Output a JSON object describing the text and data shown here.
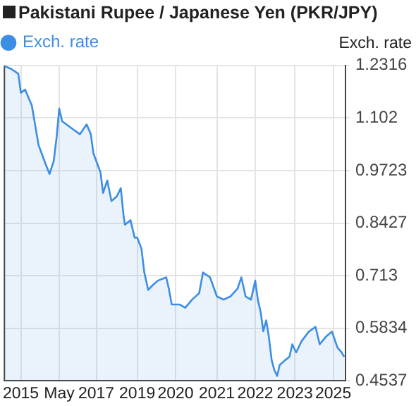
{
  "chart_data": {
    "type": "area",
    "title": "Pakistani Rupee / Japanese Yen (PKR/JPY)",
    "ylabel": "Exch. rate",
    "legend": "top left",
    "grid": true,
    "marker": "none",
    "x": [
      2014.44,
      2014.65,
      2014.87,
      2014.95,
      2015.08,
      2015.29,
      2015.5,
      2015.72,
      2015.84,
      2015.97,
      2016.06,
      2016.14,
      2016.23,
      2016.57,
      2016.78,
      2016.99,
      2017.12,
      2017.2,
      2017.42,
      2017.5,
      2017.63,
      2017.76,
      2017.93,
      2018.05,
      2018.14,
      2018.18,
      2018.35,
      2018.48,
      2018.56,
      2018.69,
      2018.78,
      2018.9,
      2019.03,
      2019.2,
      2019.46,
      2019.54,
      2019.63,
      2019.88,
      2020.05,
      2020.26,
      2020.48,
      2020.6,
      2020.82,
      2021.03,
      2021.24,
      2021.45,
      2021.67,
      2021.79,
      2021.92,
      2022.09,
      2022.22,
      2022.3,
      2022.39,
      2022.47,
      2022.56,
      2022.64,
      2022.73,
      2022.81,
      2022.9,
      2022.98,
      2023.15,
      2023.28,
      2023.37,
      2023.49,
      2023.66,
      2023.88,
      2024.09,
      2024.22,
      2024.43,
      2024.6,
      2024.77,
      2024.9,
      2024.98
    ],
    "series": [
      {
        "name": "Exch. rate",
        "color": "#3c8ee4",
        "values": [
          1.23,
          1.223,
          1.211,
          1.164,
          1.172,
          1.133,
          1.035,
          0.988,
          0.964,
          0.996,
          1.055,
          1.125,
          1.094,
          1.074,
          1.062,
          1.086,
          1.062,
          1.015,
          0.968,
          0.917,
          0.948,
          0.897,
          0.909,
          0.929,
          0.858,
          0.839,
          0.85,
          0.807,
          0.807,
          0.78,
          0.721,
          0.678,
          0.689,
          0.701,
          0.709,
          0.681,
          0.642,
          0.642,
          0.634,
          0.654,
          0.67,
          0.721,
          0.709,
          0.662,
          0.654,
          0.662,
          0.681,
          0.709,
          0.662,
          0.654,
          0.701,
          0.654,
          0.623,
          0.576,
          0.603,
          0.564,
          0.505,
          0.481,
          0.466,
          0.493,
          0.505,
          0.513,
          0.544,
          0.524,
          0.552,
          0.575,
          0.587,
          0.544,
          0.564,
          0.575,
          0.536,
          0.524,
          0.513
        ]
      }
    ],
    "xlim": [
      2014.44,
      2025.02
    ],
    "xticks": [
      {
        "value": 2014.95,
        "label": "2015"
      },
      {
        "value": 2016.14,
        "label": "May"
      },
      {
        "value": 2017.29,
        "label": "2017"
      },
      {
        "value": 2018.56,
        "label": "2019"
      },
      {
        "value": 2019.75,
        "label": "2020"
      },
      {
        "value": 2021.03,
        "label": "2021"
      },
      {
        "value": 2022.22,
        "label": "2022"
      },
      {
        "value": 2023.45,
        "label": "2023"
      },
      {
        "value": 2024.64,
        "label": "2025"
      }
    ],
    "ylim": [
      0.4537,
      1.2316
    ],
    "yticks": [
      0.4537,
      0.5834,
      0.713,
      0.8427,
      0.9723,
      1.102,
      1.2316
    ]
  }
}
